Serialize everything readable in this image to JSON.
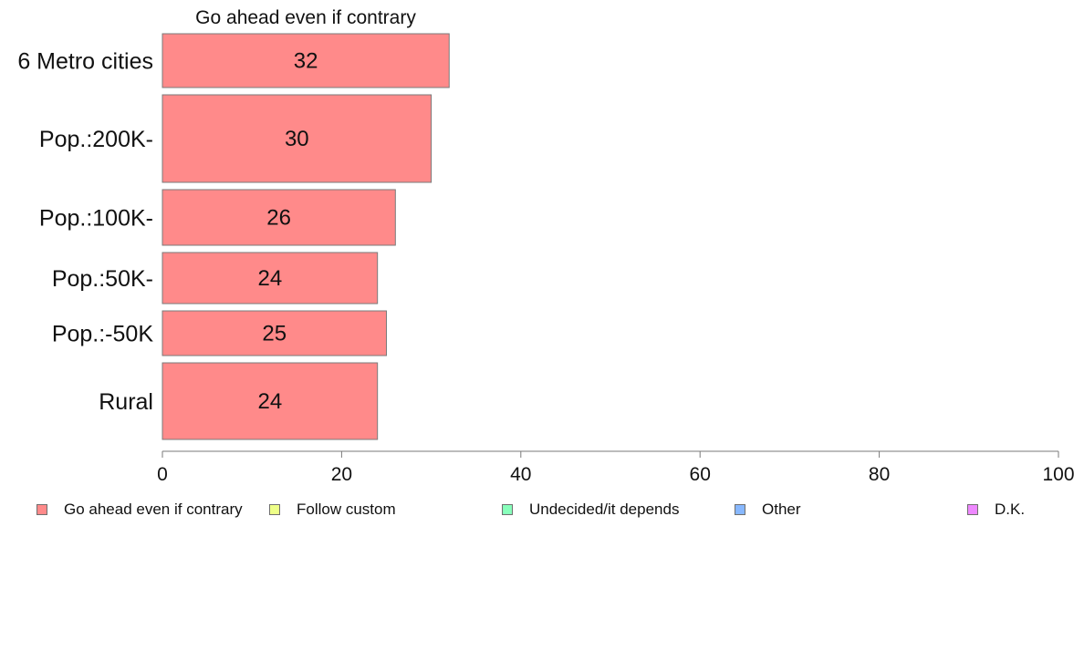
{
  "chart_data": {
    "type": "bar",
    "orientation": "horizontal",
    "title": "Go ahead even if contrary",
    "categories": [
      "6 Metro cities",
      "Pop.:200K-",
      "Pop.:100K-",
      "Pop.:50K-",
      "Pop.:-50K",
      "Rural"
    ],
    "series": [
      {
        "name": "Go ahead even if contrary",
        "values": [
          32,
          30,
          26,
          24,
          25,
          24
        ],
        "color": "#ff8a8a"
      }
    ],
    "xlim": [
      0,
      100
    ],
    "xticks": [
      "0",
      "20",
      "40",
      "60",
      "80",
      "100"
    ],
    "grid": false,
    "legend_position": "bottom",
    "legend": [
      {
        "label": "Go ahead even if contrary",
        "color": "#ff8a8a"
      },
      {
        "label": "Follow custom",
        "color": "#eeff88"
      },
      {
        "label": "Undecided/it depends",
        "color": "#88ffbb"
      },
      {
        "label": "Other",
        "color": "#88b8ff"
      },
      {
        "label": "D.K.",
        "color": "#ee88ff"
      }
    ]
  }
}
